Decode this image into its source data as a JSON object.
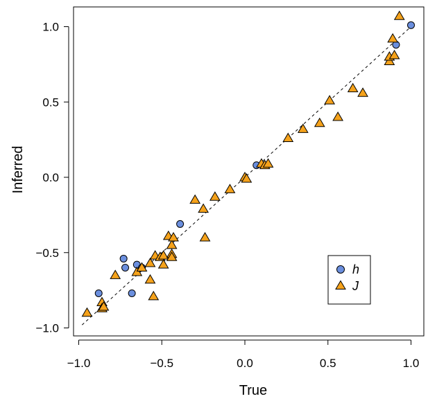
{
  "chart_data": {
    "type": "scatter",
    "title": "",
    "xlabel": "True",
    "ylabel": "Inferred",
    "xlim": [
      -1.05,
      1.05
    ],
    "ylim": [
      -1.05,
      1.1
    ],
    "x_ticks": [
      -1.0,
      -0.5,
      0.0,
      0.5,
      1.0
    ],
    "y_ticks": [
      -1.0,
      -0.5,
      0.0,
      0.5,
      1.0
    ],
    "x_tick_labels": [
      "−1.0",
      "−0.5",
      "0.0",
      "0.5",
      "1.0"
    ],
    "y_tick_labels": [
      "−1.0",
      "−0.5",
      "0.0",
      "0.5",
      "1.0"
    ],
    "grid": false,
    "legend_position": "bottom-right",
    "reference_line": {
      "style": "dashed",
      "slope": 1,
      "intercept": 0
    },
    "series": [
      {
        "name": "h",
        "marker": "circle",
        "color": "#6b8fde",
        "points": [
          [
            -0.73,
            -0.54
          ],
          [
            -0.72,
            -0.6
          ],
          [
            -0.88,
            -0.77
          ],
          [
            -0.68,
            -0.77
          ],
          [
            -0.65,
            -0.58
          ],
          [
            -0.62,
            -0.6
          ],
          [
            -0.39,
            -0.31
          ],
          [
            0.07,
            0.08
          ],
          [
            0.91,
            0.88
          ],
          [
            1.0,
            1.01
          ]
        ]
      },
      {
        "name": "J",
        "marker": "triangle",
        "color": "#f5a21b",
        "points": [
          [
            -0.95,
            -0.9
          ],
          [
            -0.86,
            -0.83
          ],
          [
            -0.86,
            -0.87
          ],
          [
            -0.85,
            -0.86
          ],
          [
            -0.78,
            -0.65
          ],
          [
            -0.65,
            -0.63
          ],
          [
            -0.62,
            -0.6
          ],
          [
            -0.57,
            -0.57
          ],
          [
            -0.57,
            -0.68
          ],
          [
            -0.55,
            -0.79
          ],
          [
            -0.54,
            -0.52
          ],
          [
            -0.51,
            -0.53
          ],
          [
            -0.49,
            -0.58
          ],
          [
            -0.49,
            -0.52
          ],
          [
            -0.46,
            -0.39
          ],
          [
            -0.44,
            -0.45
          ],
          [
            -0.44,
            -0.51
          ],
          [
            -0.44,
            -0.53
          ],
          [
            -0.43,
            -0.4
          ],
          [
            -0.3,
            -0.15
          ],
          [
            -0.25,
            -0.21
          ],
          [
            -0.24,
            -0.4
          ],
          [
            -0.18,
            -0.13
          ],
          [
            -0.09,
            -0.08
          ],
          [
            0.0,
            0.0
          ],
          [
            0.01,
            -0.01
          ],
          [
            0.1,
            0.09
          ],
          [
            0.12,
            0.08
          ],
          [
            0.14,
            0.09
          ],
          [
            0.26,
            0.26
          ],
          [
            0.35,
            0.32
          ],
          [
            0.45,
            0.36
          ],
          [
            0.51,
            0.51
          ],
          [
            0.56,
            0.4
          ],
          [
            0.65,
            0.59
          ],
          [
            0.71,
            0.56
          ],
          [
            0.87,
            0.77
          ],
          [
            0.87,
            0.8
          ],
          [
            0.89,
            0.92
          ],
          [
            0.9,
            0.81
          ],
          [
            0.93,
            1.07
          ]
        ]
      }
    ]
  },
  "legend": {
    "items": [
      {
        "label": "h",
        "marker": "circle",
        "color": "#6b8fde"
      },
      {
        "label": "J",
        "marker": "triangle",
        "color": "#f5a21b"
      }
    ]
  }
}
